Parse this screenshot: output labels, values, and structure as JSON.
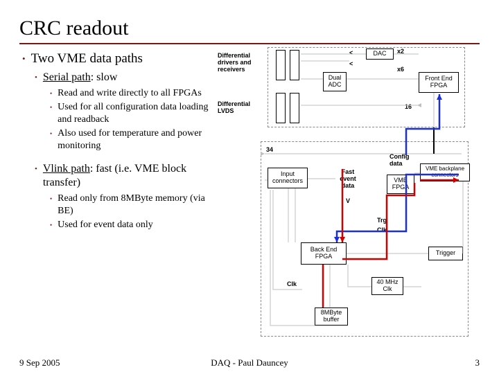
{
  "title": "CRC readout",
  "footer": {
    "date": "9 Sep 2005",
    "center": "DAQ - Paul Dauncey",
    "page": "3"
  },
  "bullets": {
    "l1": "Two VME data paths",
    "l2a_u": "Serial path",
    "l2a_rest": ": slow",
    "l3a1": "Read and write directly to all FPGAs",
    "l3a2": "Used for all configuration data loading and readback",
    "l3a3": "Also used for temperature and power monitoring",
    "l2b_u": "Vlink path",
    "l2b_rest": ": fast (i.e. VME block transfer)",
    "l3b1": "Read only from 8MByte memory (via BE)",
    "l3b2": "Used for event data only"
  },
  "diagram": {
    "labels": {
      "diffdrv": "Differential\ndrivers and\nreceivers",
      "difflvds": "Differential\nLVDS",
      "x2": "x2",
      "x6": "x6",
      "lt": "<",
      "lt2": "<",
      "bus34": "34",
      "config": "Config\ndata",
      "fastev": "Fast\nevent\ndata",
      "arrow16": "16",
      "v_lbl": "V",
      "trg": "Trg",
      "clk": "Clk",
      "clk2": "Clk"
    },
    "boxes": {
      "dac": "DAC",
      "dualadc": "Dual\nADC",
      "fefpga": "Front End\nFPGA",
      "inputconn": "Input\nconnectors",
      "vmebp": "VME backplane\nconnectors",
      "vmefpga": "VME\nFPGA",
      "befpga": "Back End\nFPGA",
      "trigger": "Trigger",
      "clk40": "40 MHz\nClk",
      "buf8m": "8MByte\nbuffer"
    },
    "colors": {
      "dash": "#999999",
      "gray": "#bfbfbf",
      "red": "#cc0000",
      "blue": "#1a2fd6",
      "black": "#000000"
    }
  }
}
